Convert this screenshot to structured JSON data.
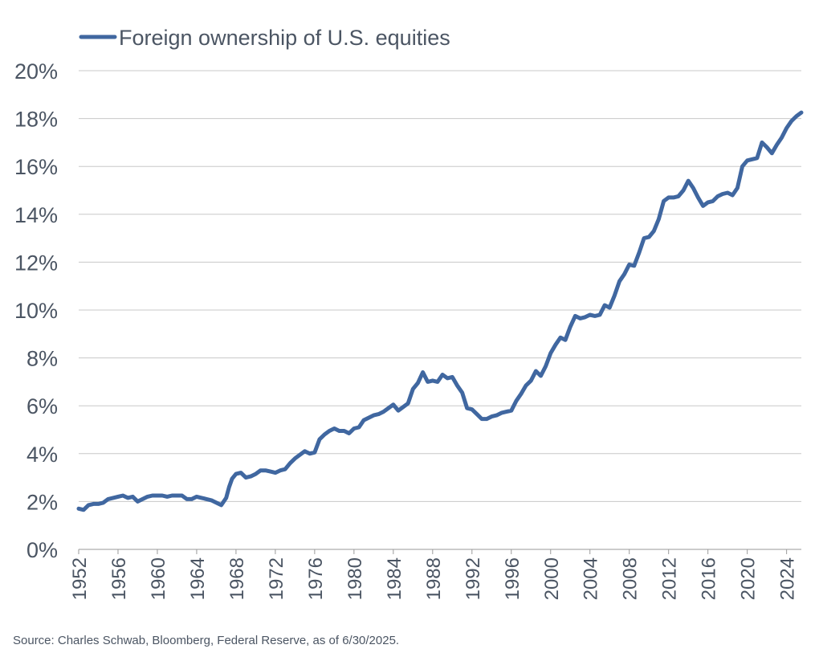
{
  "chart_data": {
    "type": "line",
    "colors": {
      "series": "#4067a0",
      "grid": "#c8c8c8",
      "text": "#4b5563"
    },
    "legend": {
      "placement": "top-left"
    },
    "grid": true,
    "xlim": [
      1952,
      2025.5
    ],
    "ylim": [
      0,
      20
    ],
    "y_ticks": [
      0,
      2,
      4,
      6,
      8,
      10,
      12,
      14,
      16,
      18,
      20
    ],
    "y_tick_labels": [
      "0%",
      "2%",
      "4%",
      "6%",
      "8%",
      "10%",
      "12%",
      "14%",
      "16%",
      "18%",
      "20%"
    ],
    "x_ticks": [
      1952,
      1956,
      1960,
      1964,
      1968,
      1972,
      1976,
      1980,
      1984,
      1988,
      1992,
      1996,
      2000,
      2004,
      2008,
      2012,
      2016,
      2020,
      2024
    ],
    "x_tick_labels": [
      "1952",
      "1956",
      "1960",
      "1964",
      "1968",
      "1972",
      "1976",
      "1980",
      "1984",
      "1988",
      "1992",
      "1996",
      "2000",
      "2004",
      "2008",
      "2012",
      "2016",
      "2020",
      "2024"
    ],
    "source": "Source: Charles Schwab, Bloomberg, Federal Reserve, as of 6/30/2025.",
    "series": [
      {
        "name": "Foreign ownership of U.S. equities",
        "x": [
          1952.0,
          1952.5,
          1953.0,
          1953.5,
          1954.0,
          1954.5,
          1955.0,
          1955.5,
          1956.0,
          1956.5,
          1957.0,
          1957.5,
          1958.0,
          1958.5,
          1959.0,
          1959.5,
          1960.0,
          1960.5,
          1961.0,
          1961.5,
          1962.0,
          1962.5,
          1963.0,
          1963.5,
          1964.0,
          1964.5,
          1965.0,
          1965.5,
          1966.0,
          1966.5,
          1967.0,
          1967.3,
          1967.6,
          1968.0,
          1968.5,
          1969.0,
          1969.5,
          1970.0,
          1970.5,
          1971.0,
          1971.5,
          1972.0,
          1972.5,
          1973.0,
          1973.5,
          1974.0,
          1974.5,
          1975.0,
          1975.5,
          1976.0,
          1976.5,
          1977.0,
          1977.5,
          1978.0,
          1978.5,
          1979.0,
          1979.5,
          1980.0,
          1980.5,
          1981.0,
          1981.5,
          1982.0,
          1982.5,
          1983.0,
          1983.5,
          1984.0,
          1984.5,
          1985.0,
          1985.5,
          1986.0,
          1986.5,
          1987.0,
          1987.5,
          1988.0,
          1988.5,
          1989.0,
          1989.5,
          1990.0,
          1990.5,
          1991.0,
          1991.5,
          1992.0,
          1992.5,
          1993.0,
          1993.5,
          1994.0,
          1994.5,
          1995.0,
          1995.5,
          1996.0,
          1996.5,
          1997.0,
          1997.5,
          1998.0,
          1998.5,
          1999.0,
          1999.5,
          2000.0,
          2000.5,
          2001.0,
          2001.5,
          2002.0,
          2002.5,
          2003.0,
          2003.5,
          2004.0,
          2004.5,
          2005.0,
          2005.5,
          2006.0,
          2006.5,
          2007.0,
          2007.5,
          2008.0,
          2008.5,
          2009.0,
          2009.5,
          2010.0,
          2010.5,
          2011.0,
          2011.5,
          2012.0,
          2012.5,
          2013.0,
          2013.5,
          2014.0,
          2014.5,
          2015.0,
          2015.5,
          2016.0,
          2016.5,
          2017.0,
          2017.5,
          2018.0,
          2018.5,
          2019.0,
          2019.5,
          2020.0,
          2020.5,
          2021.0,
          2021.5,
          2022.0,
          2022.5,
          2023.0,
          2023.5,
          2024.0,
          2024.5,
          2025.0,
          2025.5
        ],
        "y": [
          1.7,
          1.65,
          1.85,
          1.9,
          1.9,
          1.95,
          2.1,
          2.15,
          2.2,
          2.25,
          2.15,
          2.2,
          2.0,
          2.1,
          2.2,
          2.25,
          2.25,
          2.25,
          2.2,
          2.25,
          2.25,
          2.25,
          2.1,
          2.1,
          2.2,
          2.15,
          2.1,
          2.05,
          1.95,
          1.85,
          2.15,
          2.6,
          2.95,
          3.15,
          3.2,
          3.0,
          3.05,
          3.15,
          3.3,
          3.3,
          3.25,
          3.2,
          3.3,
          3.35,
          3.6,
          3.8,
          3.95,
          4.1,
          4.0,
          4.05,
          4.6,
          4.8,
          4.95,
          5.05,
          4.95,
          4.95,
          4.85,
          5.05,
          5.1,
          5.4,
          5.5,
          5.6,
          5.65,
          5.75,
          5.9,
          6.05,
          5.8,
          5.95,
          6.1,
          6.7,
          6.95,
          7.4,
          7.0,
          7.05,
          7.0,
          7.3,
          7.15,
          7.2,
          6.85,
          6.55,
          5.9,
          5.85,
          5.65,
          5.45,
          5.45,
          5.55,
          5.6,
          5.7,
          5.75,
          5.8,
          6.2,
          6.5,
          6.85,
          7.05,
          7.45,
          7.25,
          7.65,
          8.2,
          8.55,
          8.85,
          8.75,
          9.3,
          9.75,
          9.65,
          9.7,
          9.8,
          9.75,
          9.8,
          10.2,
          10.1,
          10.6,
          11.2,
          11.5,
          11.9,
          11.85,
          12.4,
          13.0,
          13.05,
          13.3,
          13.8,
          14.55,
          14.7,
          14.7,
          14.75,
          15.0,
          15.4,
          15.1,
          14.7,
          14.35,
          14.5,
          14.55,
          14.75,
          14.85,
          14.9,
          14.8,
          15.1,
          16.0,
          16.25,
          16.3,
          16.35,
          17.0,
          16.8,
          16.55,
          16.9,
          17.2,
          17.6,
          17.9,
          18.1,
          18.25
        ]
      }
    ]
  }
}
